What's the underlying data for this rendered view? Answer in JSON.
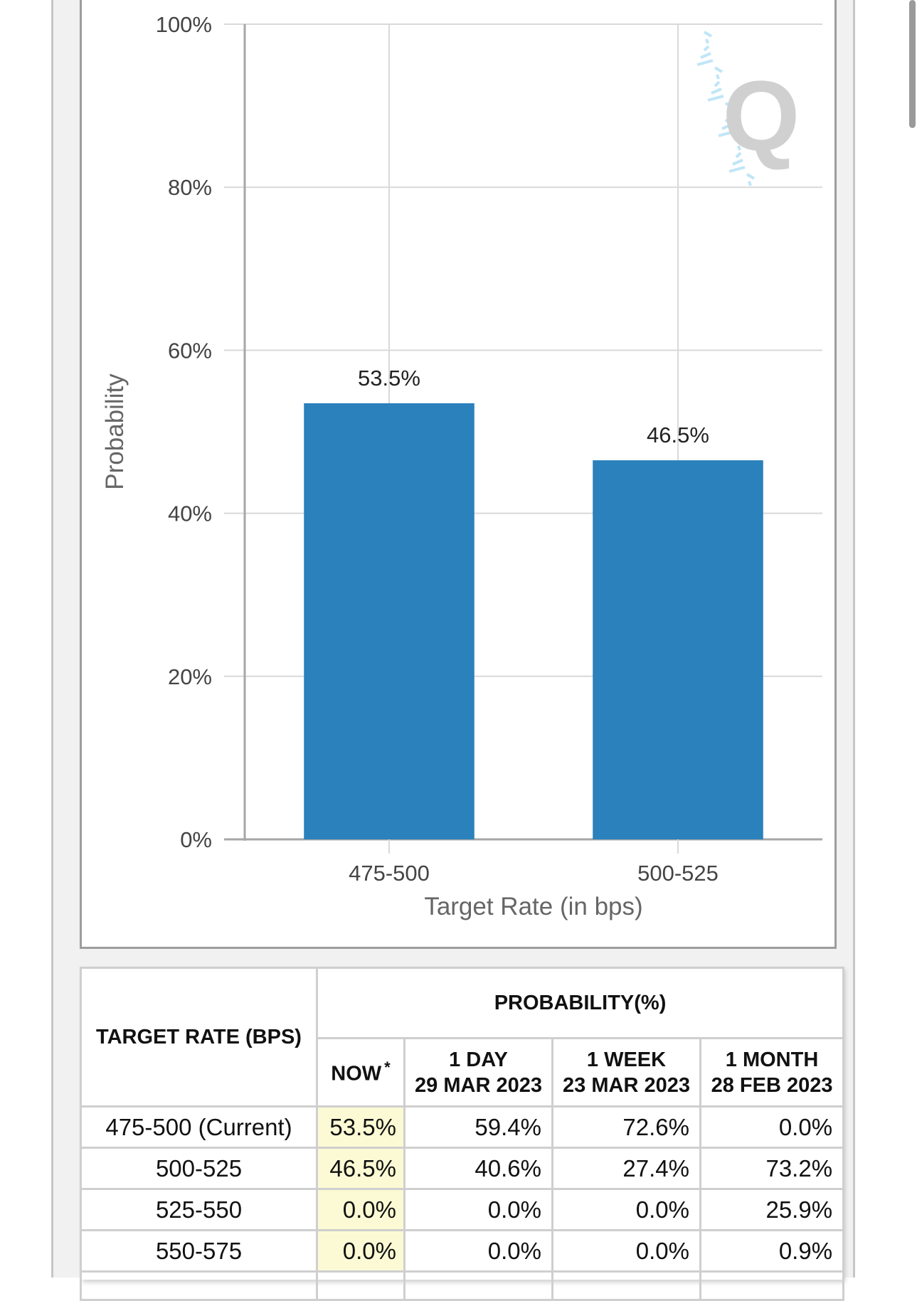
{
  "chart_data": {
    "type": "bar",
    "categories": [
      "475-500",
      "500-525"
    ],
    "values": [
      53.5,
      46.5
    ],
    "data_labels": [
      "53.5%",
      "46.5%"
    ],
    "xlabel": "Target Rate (in bps)",
    "ylabel": "Probability",
    "ylim": [
      0,
      100
    ],
    "yticks": [
      0,
      20,
      40,
      60,
      80,
      100
    ],
    "ytick_labels": [
      "0%",
      "20%",
      "40%",
      "60%",
      "80%",
      "100%"
    ],
    "grid": true,
    "bar_color": "#2a81bb",
    "grid_color": "#d9d9d9"
  },
  "table": {
    "rate_header": "TARGET RATE (BPS)",
    "prob_header": "PROBABILITY(%)",
    "now_header": "NOW",
    "now_marker": "*",
    "columns": [
      {
        "line1": "1 DAY",
        "line2": "29 MAR 2023"
      },
      {
        "line1": "1 WEEK",
        "line2": "23 MAR 2023"
      },
      {
        "line1": "1 MONTH",
        "line2": "28 FEB 2023"
      }
    ],
    "rows": [
      {
        "rate": "475-500 (Current)",
        "now": "53.5%",
        "day": "59.4%",
        "week": "72.6%",
        "month": "0.0%"
      },
      {
        "rate": "500-525",
        "now": "46.5%",
        "day": "40.6%",
        "week": "27.4%",
        "month": "73.2%"
      },
      {
        "rate": "525-550",
        "now": "0.0%",
        "day": "0.0%",
        "week": "0.0%",
        "month": "25.9%"
      },
      {
        "rate": "550-575",
        "now": "0.0%",
        "day": "0.0%",
        "week": "0.0%",
        "month": "0.9%"
      }
    ]
  },
  "watermark": {
    "letter": "Q"
  }
}
